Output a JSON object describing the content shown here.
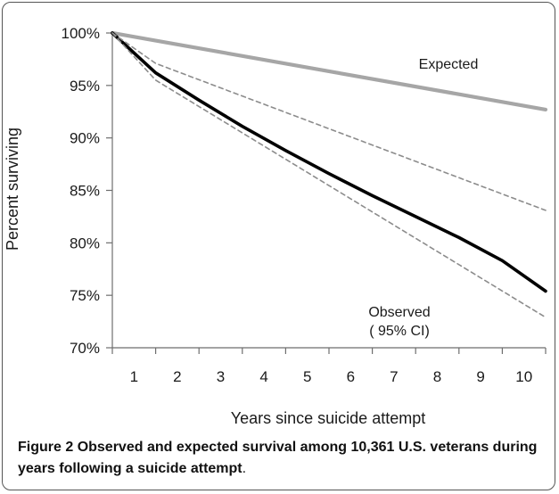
{
  "caption": {
    "label": "Figure 2",
    "text": "Observed and expected survival among 10,361 U.S. veterans during years following a suicide attempt",
    "period": "."
  },
  "chart_data": {
    "type": "line",
    "xlabel": "Years since suicide attempt",
    "ylabel": "Percent surviving",
    "x_ticks": [
      1,
      2,
      3,
      4,
      5,
      6,
      7,
      8,
      9,
      10
    ],
    "y_ticks": [
      "70%",
      "75%",
      "80%",
      "85%",
      "90%",
      "95%",
      "100%"
    ],
    "ylim": [
      70,
      100
    ],
    "xlim": [
      0.5,
      10.5
    ],
    "grid": false,
    "annotations": [
      {
        "text": "Expected",
        "series": "expected"
      },
      {
        "text": "Observed",
        "series": "observed"
      },
      {
        "text": "( 95% CI)",
        "series": "observed"
      }
    ],
    "series": [
      {
        "id": "expected",
        "color": "#a6a6a6",
        "style": "solid-thick",
        "x": [
          0.5,
          10.5
        ],
        "y": [
          100,
          92.7
        ]
      },
      {
        "id": "observed",
        "color": "#000000",
        "style": "solid-thick",
        "x": [
          0.5,
          1.5,
          2.5,
          3.5,
          4.5,
          5.5,
          6.5,
          7.5,
          8.5,
          9.5,
          10.5
        ],
        "y": [
          100,
          96.2,
          93.6,
          91.1,
          88.8,
          86.6,
          84.5,
          82.5,
          80.5,
          78.3,
          75.4
        ]
      },
      {
        "id": "upper-ci",
        "color": "#8c8c8c",
        "style": "dashed",
        "x": [
          0.5,
          1.5,
          10.5
        ],
        "y": [
          100,
          97.1,
          83.1
        ]
      },
      {
        "id": "lower-ci",
        "color": "#8c8c8c",
        "style": "dashed",
        "x": [
          0.5,
          1.5,
          10.5
        ],
        "y": [
          100,
          95.5,
          72.9
        ]
      }
    ]
  }
}
